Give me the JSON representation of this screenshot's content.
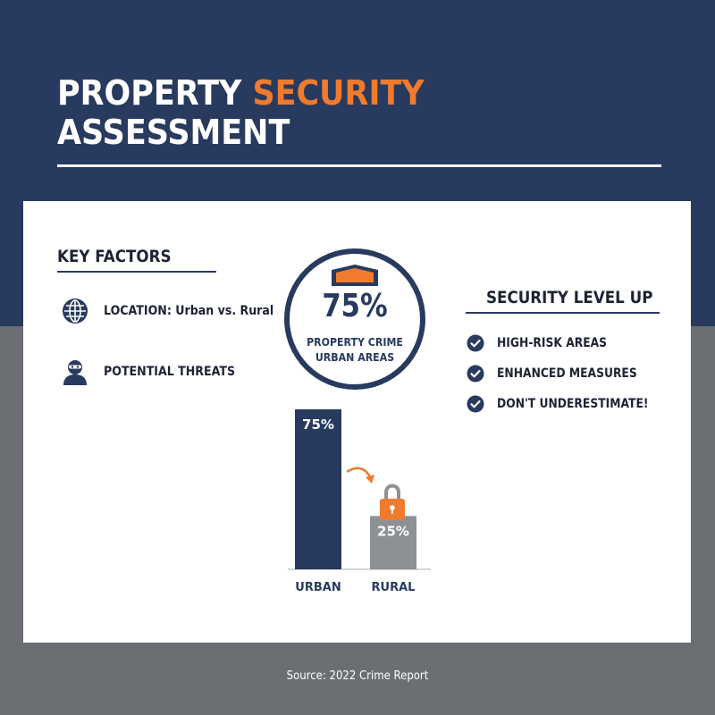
{
  "title": {
    "line1_prefix": "PROPERTY ",
    "line1_accent": "SECURITY",
    "line2": "ASSESSMENT"
  },
  "key_factors": {
    "heading": "KEY FACTORS",
    "items": [
      {
        "icon": "globe-icon",
        "label": "LOCATION: Urban vs. Rural"
      },
      {
        "icon": "burglar-icon",
        "label": "POTENTIAL THREATS"
      }
    ]
  },
  "stat_circle": {
    "icon": "shield-icon",
    "value": "75%",
    "caption_line1": "PROPERTY CRIME",
    "caption_line2": "URBAN AREAS"
  },
  "security_level": {
    "heading": "SECURITY LEVEL UP",
    "items": [
      {
        "icon": "check-circle-icon",
        "label": "HIGH-RISK AREAS"
      },
      {
        "icon": "check-circle-icon",
        "label": "ENHANCED MEASURES"
      },
      {
        "icon": "check-circle-icon",
        "label": "DON'T UNDERESTIMATE!"
      }
    ]
  },
  "chart_data": {
    "type": "bar",
    "categories": [
      "URBAN",
      "RURAL"
    ],
    "values": [
      75,
      25
    ],
    "data_labels": [
      "75%",
      "25%"
    ],
    "ylim": [
      0,
      75
    ],
    "colors": [
      "#283a5e",
      "#8e9194"
    ],
    "annotation_icons": [
      "curved-arrow-icon",
      "padlock-icon"
    ],
    "grid": false
  },
  "colors": {
    "navy": "#283a5e",
    "orange": "#f07b2c",
    "gray": "#6b6e72"
  },
  "source": "Source: 2022 Crime Report"
}
